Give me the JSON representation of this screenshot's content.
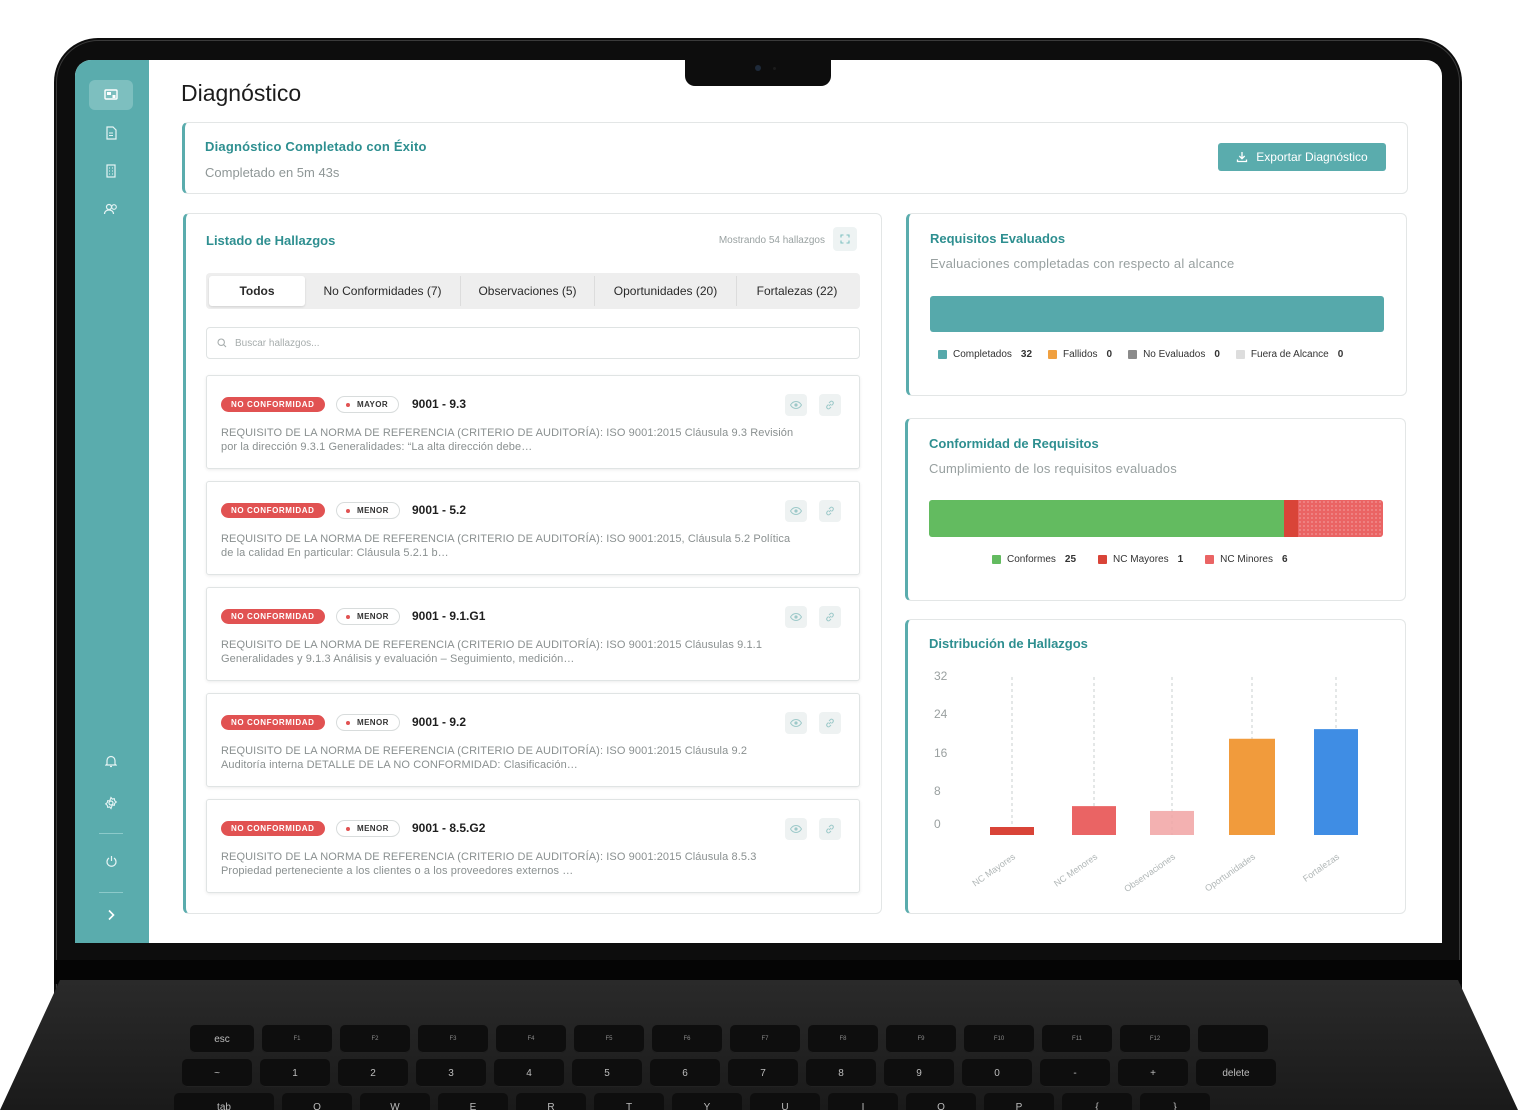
{
  "page": {
    "title": "Diagnóstico"
  },
  "banner": {
    "title": "Diagnóstico Completado con Éxito",
    "subtitle": "Completado en 5m 43s",
    "export_label": "Exportar Diagnóstico"
  },
  "findings": {
    "title": "Listado de Hallazgos",
    "count_text": "Mostrando 54 hallazgos",
    "tabs": [
      {
        "label": "Todos",
        "active": true
      },
      {
        "label": "No Conformidades (7)"
      },
      {
        "label": "Observaciones (5)"
      },
      {
        "label": "Oportunidades (20)"
      },
      {
        "label": "Fortalezas (22)"
      }
    ],
    "search_placeholder": "Buscar hallazgos...",
    "items": [
      {
        "type": "NO CONFORMIDAD",
        "severity": "MAYOR",
        "code": "9001 - 9.3",
        "desc_1": "REQUISITO DE LA NORMA DE REFERENCIA (CRITERIO DE AUDITORÍA): ISO 9001:2015 Cláusula 9.3 Revisión",
        "desc_2": "por la dirección 9.3.1 Generalidades: “La alta dirección debe…"
      },
      {
        "type": "NO CONFORMIDAD",
        "severity": "MENOR",
        "code": "9001 - 5.2",
        "desc_1": "REQUISITO DE LA NORMA DE REFERENCIA (CRITERIO DE AUDITORÍA): ISO 9001:2015, Cláusula 5.2 Política",
        "desc_2": "de la calidad En particular: Cláusula 5.2.1 b…"
      },
      {
        "type": "NO CONFORMIDAD",
        "severity": "MENOR",
        "code": "9001 - 9.1.G1",
        "desc_1": "REQUISITO DE LA NORMA DE REFERENCIA (CRITERIO DE AUDITORÍA): ISO 9001:2015 Cláusulas 9.1.1",
        "desc_2": "Generalidades y 9.1.3 Análisis y evaluación – Seguimiento, medición…"
      },
      {
        "type": "NO CONFORMIDAD",
        "severity": "MENOR",
        "code": "9001 - 9.2",
        "desc_1": "REQUISITO DE LA NORMA DE REFERENCIA (CRITERIO DE AUDITORÍA): ISO 9001:2015 Cláusula 9.2",
        "desc_2": "Auditoría interna DETALLE DE LA NO CONFORMIDAD: Clasificación…"
      },
      {
        "type": "NO CONFORMIDAD",
        "severity": "MENOR",
        "code": "9001 - 8.5.G2",
        "desc_1": "REQUISITO DE LA NORMA DE REFERENCIA (CRITERIO DE AUDITORÍA): ISO 9001:2015 Cláusula 8.5.3",
        "desc_2": "Propiedad perteneciente a los clientes o a los proveedores externos …"
      }
    ]
  },
  "requisitos": {
    "title": "Requisitos Evaluados",
    "subtitle": "Evaluaciones completadas con respecto al alcance",
    "legend": [
      {
        "label": "Completados",
        "value": "32",
        "color": "#56a9ab"
      },
      {
        "label": "Fallidos",
        "value": "0",
        "color": "#f0a040"
      },
      {
        "label": "No Evaluados",
        "value": "0",
        "color": "#8a8a8a"
      },
      {
        "label": "Fuera de Alcance",
        "value": "0",
        "color": "#dddddd"
      }
    ]
  },
  "conformidad": {
    "title": "Conformidad de Requisitos",
    "subtitle": "Cumplimiento de los requisitos evaluados",
    "segments": [
      {
        "label": "Conformes",
        "value": "25",
        "color": "#63bb60"
      },
      {
        "label": "NC Mayores",
        "value": "1",
        "color": "#d94438"
      },
      {
        "label": "NC Minores",
        "value": "6",
        "color": "#ea6464"
      }
    ]
  },
  "distribucion": {
    "title": "Distribución de Hallazgos"
  },
  "chart_data": {
    "type": "bar",
    "title": "Distribución de Hallazgos",
    "categories": [
      "NC Mayores",
      "NC Menores",
      "Observaciones",
      "Oportunidades",
      "Fortalezas"
    ],
    "values": [
      1,
      6,
      5,
      20,
      22
    ],
    "colors": [
      "#d94438",
      "#ea6464",
      "#f1a3a3",
      "#f19b3c",
      "#3f8de4"
    ],
    "y_ticks": [
      "0",
      "8",
      "16",
      "24",
      "32"
    ],
    "ylim": [
      0,
      32
    ],
    "grid": false
  },
  "sidebar": {
    "icons": [
      "dashboard-icon",
      "documents-icon",
      "building-icon",
      "users-icon",
      "notifications-icon",
      "settings-icon",
      "power-icon",
      "chevron-right-icon"
    ]
  }
}
